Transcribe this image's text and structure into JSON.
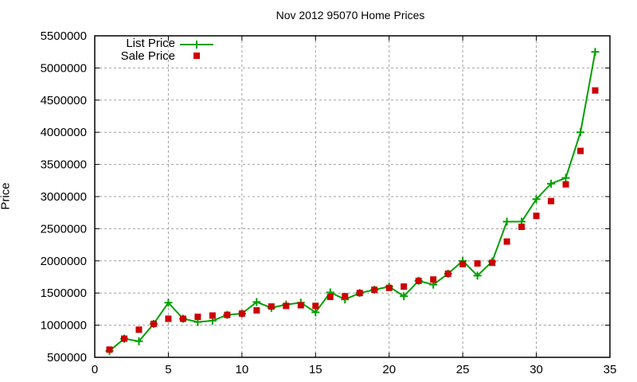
{
  "chart_data": {
    "type": "line",
    "title": "Nov 2012 95070 Home Prices",
    "xlabel": "",
    "ylabel": "Price",
    "xlim": [
      0,
      35
    ],
    "ylim": [
      500000,
      5500000
    ],
    "xticks": [
      0,
      5,
      10,
      15,
      20,
      25,
      30,
      35
    ],
    "yticks": [
      500000,
      1000000,
      1500000,
      2000000,
      2500000,
      3000000,
      3500000,
      4000000,
      4500000,
      5000000,
      5500000
    ],
    "grid": true,
    "legend_position": "top-left",
    "x": [
      1,
      2,
      3,
      4,
      5,
      6,
      7,
      8,
      9,
      10,
      11,
      12,
      13,
      14,
      15,
      16,
      17,
      18,
      19,
      20,
      21,
      22,
      23,
      24,
      25,
      26,
      27,
      28,
      29,
      30,
      31,
      32,
      33,
      34
    ],
    "series": [
      {
        "name": "List Price",
        "style": "line+cross",
        "color": "#00a000",
        "values": [
          600000,
          790000,
          750000,
          1020000,
          1350000,
          1100000,
          1050000,
          1070000,
          1160000,
          1180000,
          1360000,
          1270000,
          1320000,
          1350000,
          1200000,
          1510000,
          1400000,
          1500000,
          1550000,
          1600000,
          1450000,
          1690000,
          1630000,
          1800000,
          2000000,
          1770000,
          1990000,
          2610000,
          2610000,
          2960000,
          3200000,
          3290000,
          4000000,
          5250000
        ]
      },
      {
        "name": "Sale Price",
        "style": "square-markers",
        "color": "#cc0000",
        "values": [
          620000,
          790000,
          930000,
          1020000,
          1100000,
          1100000,
          1130000,
          1150000,
          1160000,
          1180000,
          1230000,
          1290000,
          1300000,
          1310000,
          1300000,
          1440000,
          1450000,
          1500000,
          1550000,
          1580000,
          1600000,
          1690000,
          1710000,
          1800000,
          1950000,
          1960000,
          1970000,
          2300000,
          2530000,
          2700000,
          2930000,
          3190000,
          3710000,
          4650000
        ]
      }
    ]
  }
}
